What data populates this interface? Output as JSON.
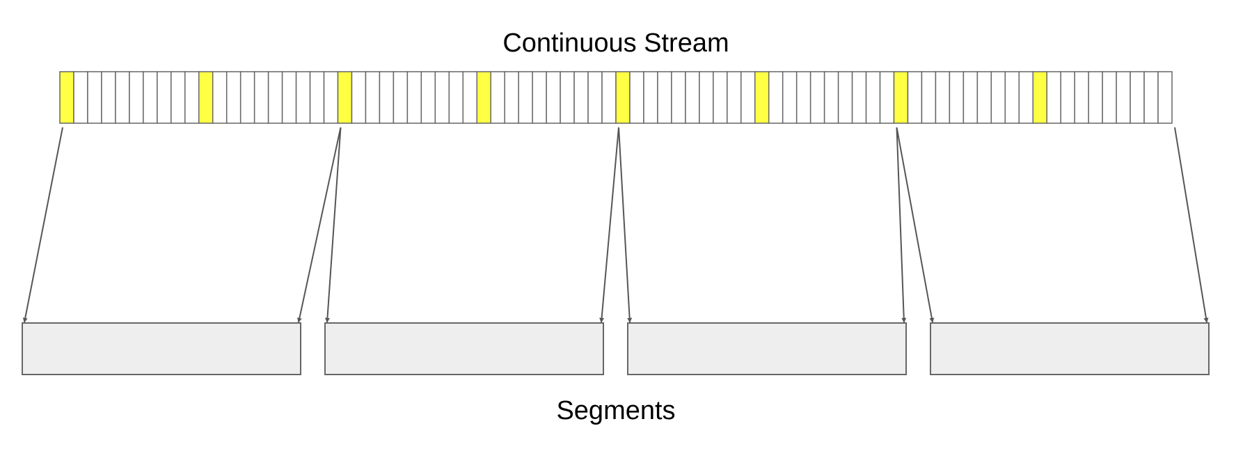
{
  "diagram": {
    "title": "Continuous Stream",
    "bottom_label": "Segments",
    "stream": {
      "cell_count": 80,
      "highlight_every": 10,
      "highlight_color": "#ffff44",
      "cell_color": "#ffffff",
      "border_color": "#666666"
    },
    "segments": {
      "count": 4,
      "fill_color": "#eeeeef",
      "border_color": "#666666"
    },
    "arrow_color": "#555555"
  }
}
